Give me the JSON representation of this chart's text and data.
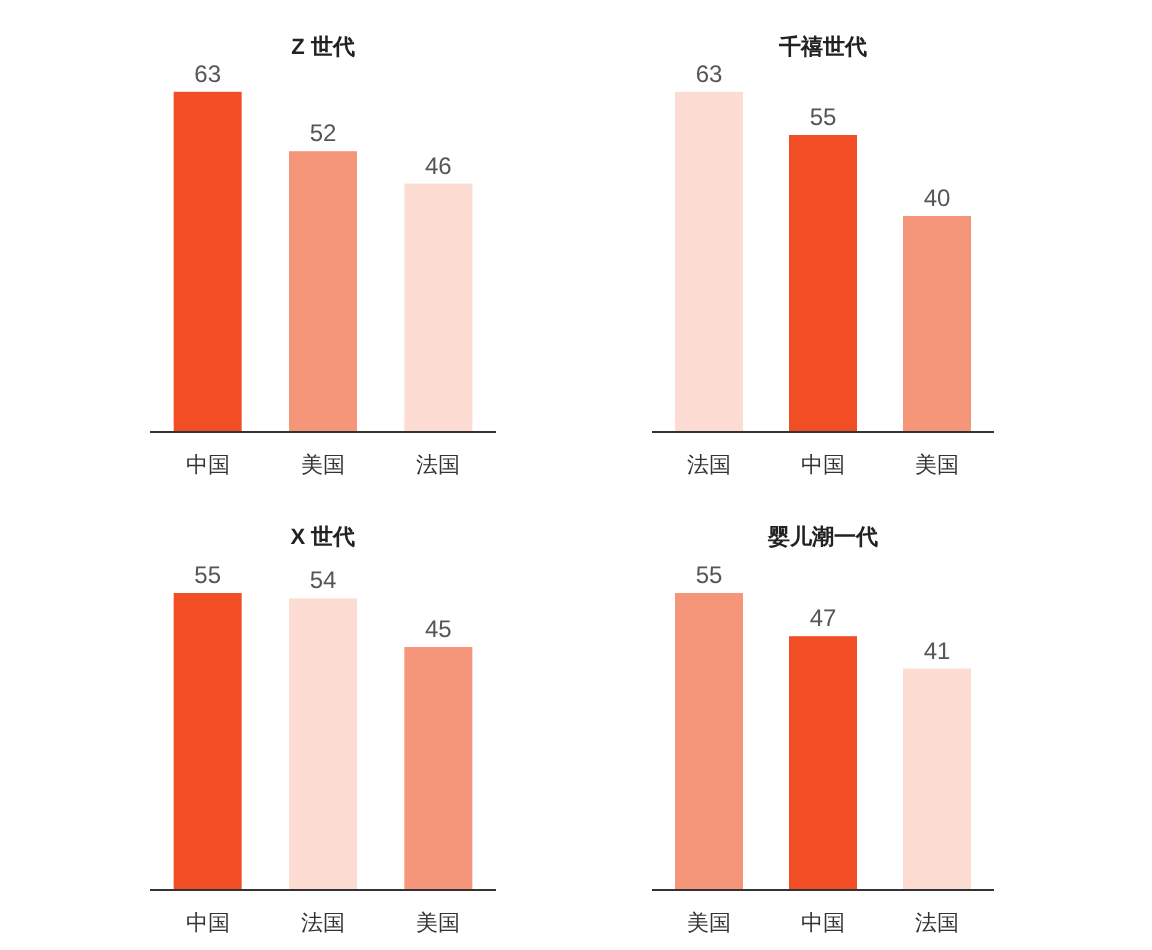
{
  "chart_data": [
    {
      "type": "bar",
      "title": "Z 世代",
      "categories": [
        "中国",
        "美国",
        "法国"
      ],
      "values": [
        63,
        52,
        46
      ],
      "colors": [
        "#f24e26",
        "#f5967a",
        "#fddcd3"
      ],
      "data_labels": true
    },
    {
      "type": "bar",
      "title": "千禧世代",
      "categories": [
        "法国",
        "中国",
        "美国"
      ],
      "values": [
        63,
        55,
        40
      ],
      "colors": [
        "#fddcd3",
        "#f24e26",
        "#f5967a"
      ],
      "data_labels": true
    },
    {
      "type": "bar",
      "title": "X 世代",
      "categories": [
        "中国",
        "法国",
        "美国"
      ],
      "values": [
        55,
        54,
        45
      ],
      "colors": [
        "#f24e26",
        "#fddcd3",
        "#f5967a"
      ],
      "data_labels": true
    },
    {
      "type": "bar",
      "title": "婴儿潮一代",
      "categories": [
        "美国",
        "中国",
        "法国"
      ],
      "values": [
        55,
        47,
        41
      ],
      "colors": [
        "#f5967a",
        "#f24e26",
        "#fddcd3"
      ],
      "data_labels": true
    }
  ]
}
